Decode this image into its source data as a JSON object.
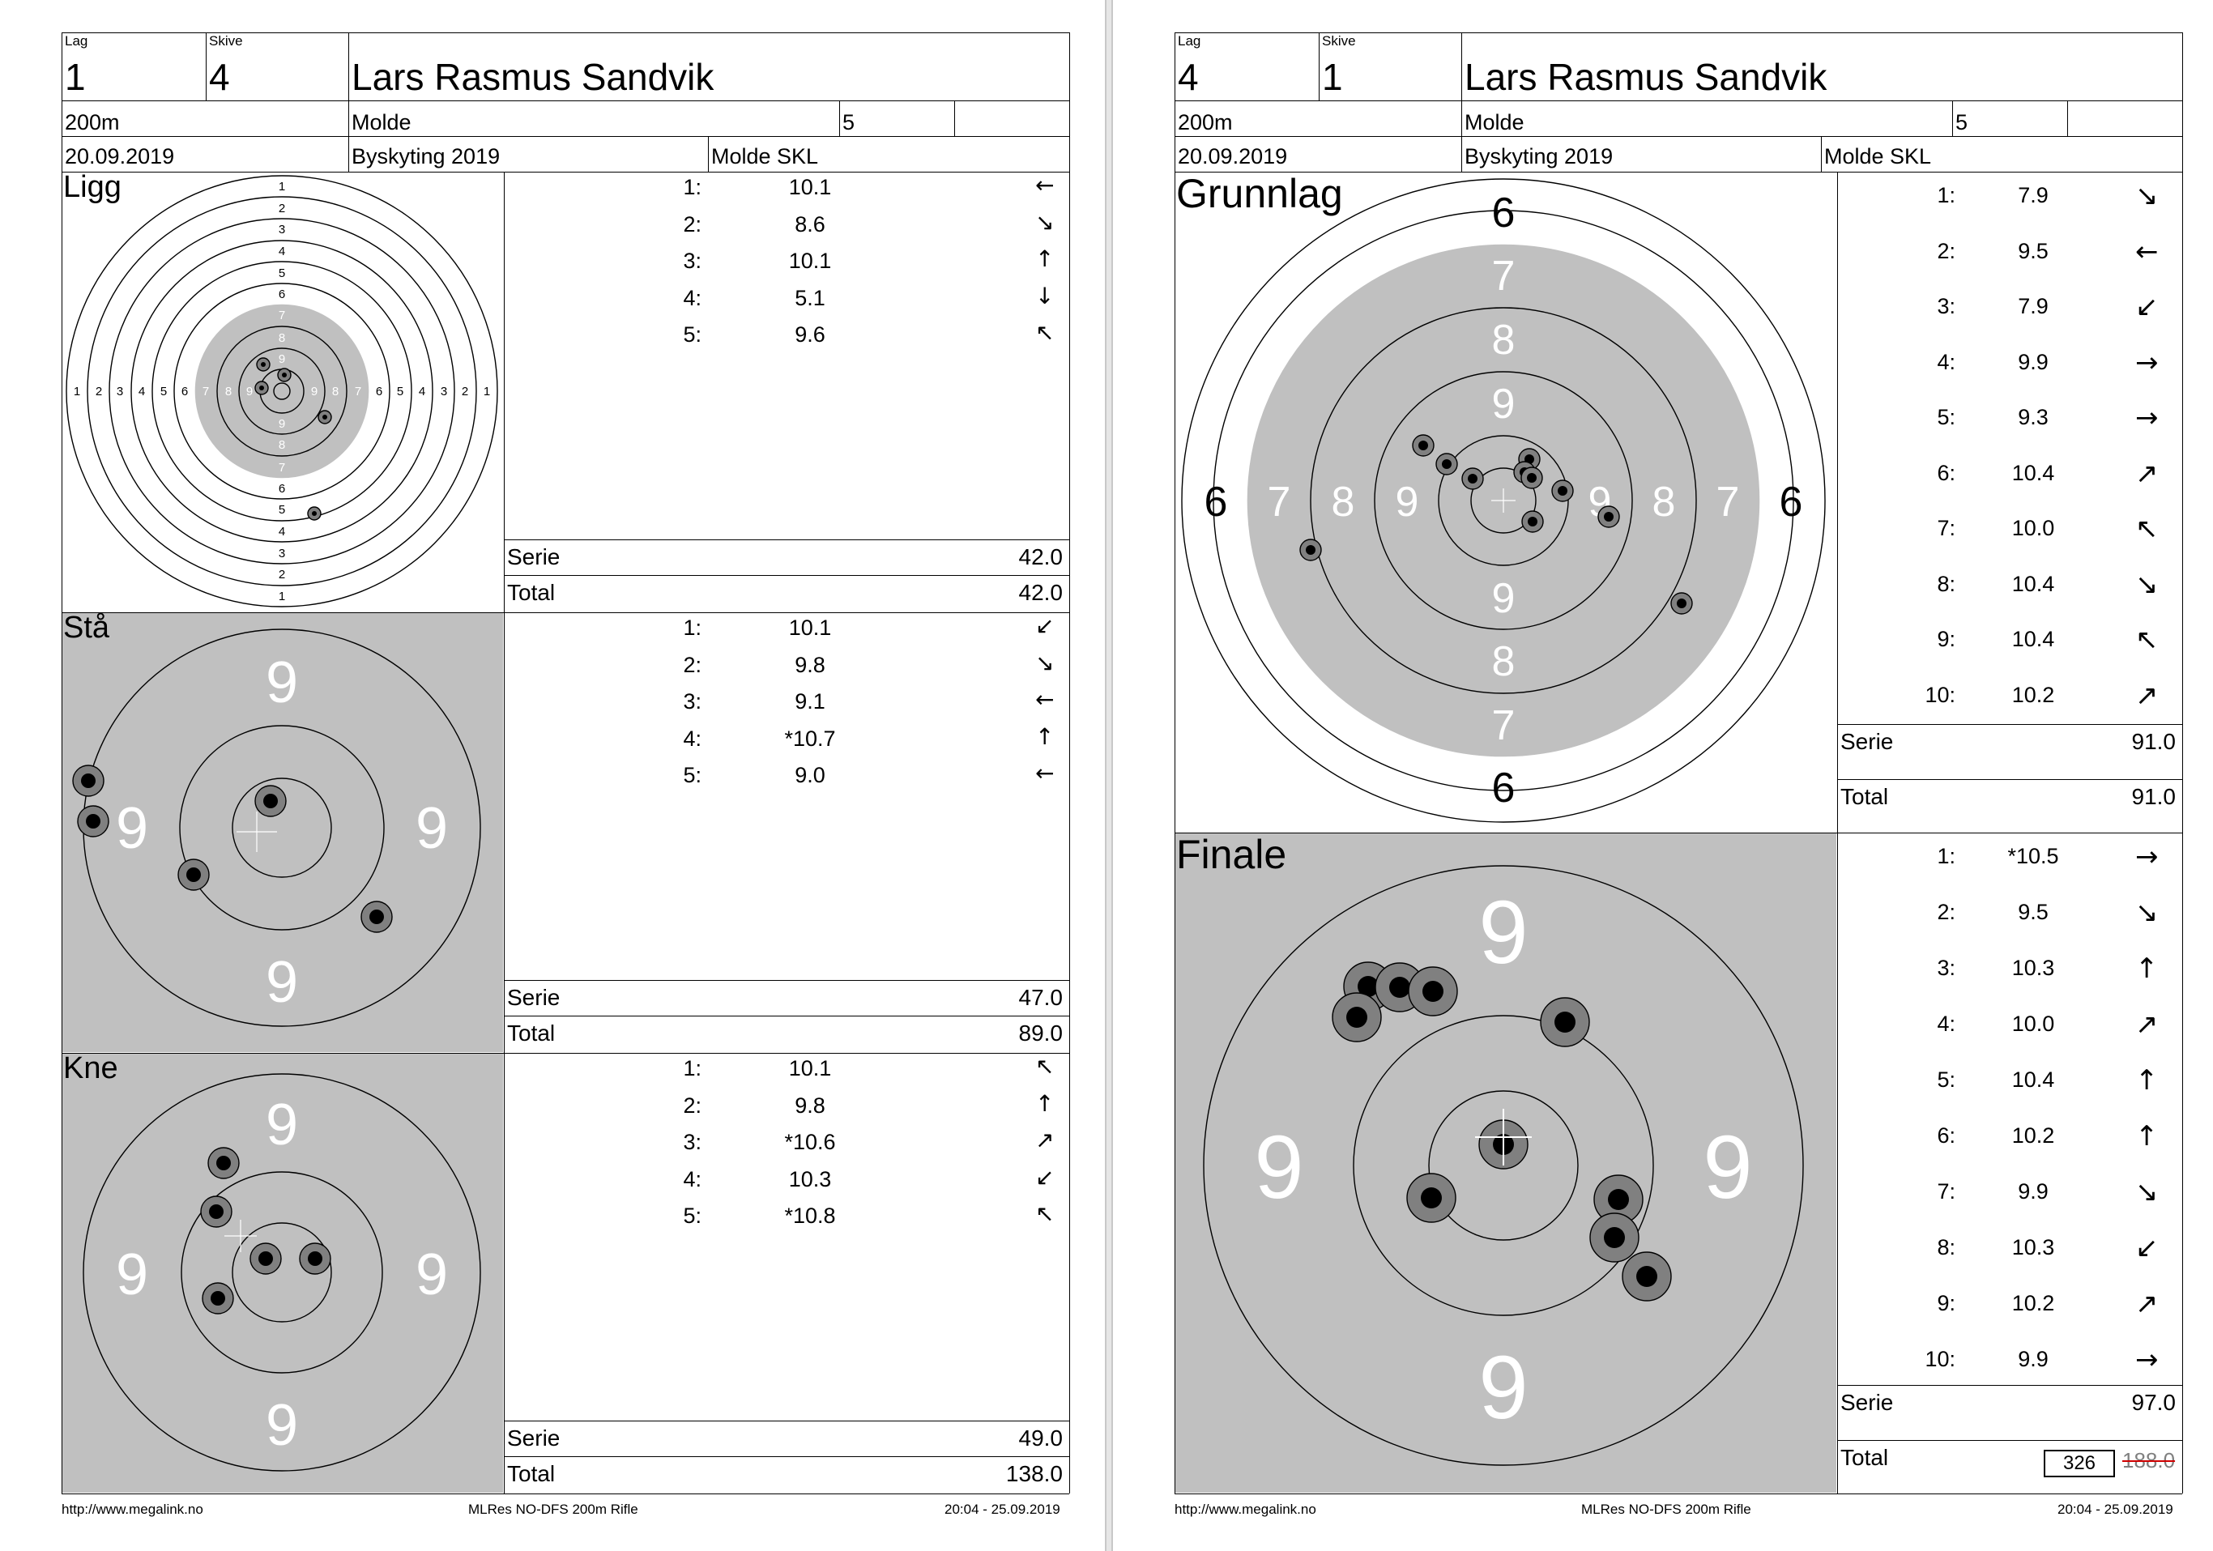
{
  "left": {
    "header": {
      "lag_label": "Lag",
      "lag": "1",
      "skive_label": "Skive",
      "skive": "4",
      "name": "Lars Rasmus Sandvik",
      "distance": "200m",
      "club": "Molde",
      "class": "5",
      "date": "20.09.2019",
      "event": "Byskyting 2019",
      "organizer": "Molde SKL"
    },
    "sections": [
      {
        "title": "Ligg",
        "shots": [
          {
            "n": "1:",
            "v": "10.1",
            "dir": "←"
          },
          {
            "n": "2:",
            "v": "8.6",
            "dir": "↘"
          },
          {
            "n": "3:",
            "v": "10.1",
            "dir": "↑"
          },
          {
            "n": "4:",
            "v": "5.1",
            "dir": "↓"
          },
          {
            "n": "5:",
            "v": "9.6",
            "dir": "↖"
          }
        ],
        "serie_label": "Serie",
        "serie": "42.0",
        "total_label": "Total",
        "total": "42.0"
      },
      {
        "title": "Stå",
        "shots": [
          {
            "n": "1:",
            "v": "10.1",
            "dir": "↙"
          },
          {
            "n": "2:",
            "v": "9.8",
            "dir": "↘"
          },
          {
            "n": "3:",
            "v": "9.1",
            "dir": "←"
          },
          {
            "n": "4:",
            "v": "*10.7",
            "dir": "↑"
          },
          {
            "n": "5:",
            "v": "9.0",
            "dir": "←"
          }
        ],
        "serie_label": "Serie",
        "serie": "47.0",
        "total_label": "Total",
        "total": "89.0"
      },
      {
        "title": "Kne",
        "shots": [
          {
            "n": "1:",
            "v": "10.1",
            "dir": "↖"
          },
          {
            "n": "2:",
            "v": "9.8",
            "dir": "↑"
          },
          {
            "n": "3:",
            "v": "*10.6",
            "dir": "↗"
          },
          {
            "n": "4:",
            "v": "10.3",
            "dir": "↙"
          },
          {
            "n": "5:",
            "v": "*10.8",
            "dir": "↖"
          }
        ],
        "serie_label": "Serie",
        "serie": "49.0",
        "total_label": "Total",
        "total": "138.0"
      }
    ],
    "footer": {
      "url": "http://www.megalink.no",
      "program": "MLRes NO-DFS 200m Rifle",
      "time": "20:04 - 25.09.2019"
    }
  },
  "right": {
    "header": {
      "lag_label": "Lag",
      "lag": "4",
      "skive_label": "Skive",
      "skive": "1",
      "name": "Lars Rasmus Sandvik",
      "distance": "200m",
      "club": "Molde",
      "class": "5",
      "date": "20.09.2019",
      "event": "Byskyting 2019",
      "organizer": "Molde SKL"
    },
    "sections": [
      {
        "title": "Grunnlag",
        "shots": [
          {
            "n": "1:",
            "v": "7.9",
            "dir": "↘"
          },
          {
            "n": "2:",
            "v": "9.5",
            "dir": "←"
          },
          {
            "n": "3:",
            "v": "7.9",
            "dir": "↙"
          },
          {
            "n": "4:",
            "v": "9.9",
            "dir": "→"
          },
          {
            "n": "5:",
            "v": "9.3",
            "dir": "→"
          },
          {
            "n": "6:",
            "v": "10.4",
            "dir": "↗"
          },
          {
            "n": "7:",
            "v": "10.0",
            "dir": "↖"
          },
          {
            "n": "8:",
            "v": "10.4",
            "dir": "↘"
          },
          {
            "n": "9:",
            "v": "10.4",
            "dir": "↖"
          },
          {
            "n": "10:",
            "v": "10.2",
            "dir": "↗"
          }
        ],
        "serie_label": "Serie",
        "serie": "91.0",
        "total_label": "Total",
        "total": "91.0"
      },
      {
        "title": "Finale",
        "shots": [
          {
            "n": "1:",
            "v": "*10.5",
            "dir": "→"
          },
          {
            "n": "2:",
            "v": "9.5",
            "dir": "↘"
          },
          {
            "n": "3:",
            "v": "10.3",
            "dir": "↑"
          },
          {
            "n": "4:",
            "v": "10.0",
            "dir": "↗"
          },
          {
            "n": "5:",
            "v": "10.4",
            "dir": "↑"
          },
          {
            "n": "6:",
            "v": "10.2",
            "dir": "↑"
          },
          {
            "n": "7:",
            "v": "9.9",
            "dir": "↘"
          },
          {
            "n": "8:",
            "v": "10.3",
            "dir": "↙"
          },
          {
            "n": "9:",
            "v": "10.2",
            "dir": "↗"
          },
          {
            "n": "10:",
            "v": "9.9",
            "dir": "→"
          }
        ],
        "serie_label": "Serie",
        "serie": "97.0",
        "total_label": "Total",
        "total_box": "326",
        "total_struck": "188.0"
      }
    ],
    "footer": {
      "url": "http://www.megalink.no",
      "program": "MLRes NO-DFS 200m Rifle",
      "time": "20:04 - 25.09.2019"
    }
  },
  "target_labels": {
    "ligg_rings": [
      "1",
      "2",
      "3",
      "4",
      "5",
      "6",
      "7",
      "8",
      "9"
    ],
    "ring_nine": "9",
    "ring_eight": "8",
    "ring_seven": "7",
    "ring_six": "6"
  },
  "colors": {
    "target_gray": "#c0c0c0",
    "strike_red": "#d00000"
  }
}
